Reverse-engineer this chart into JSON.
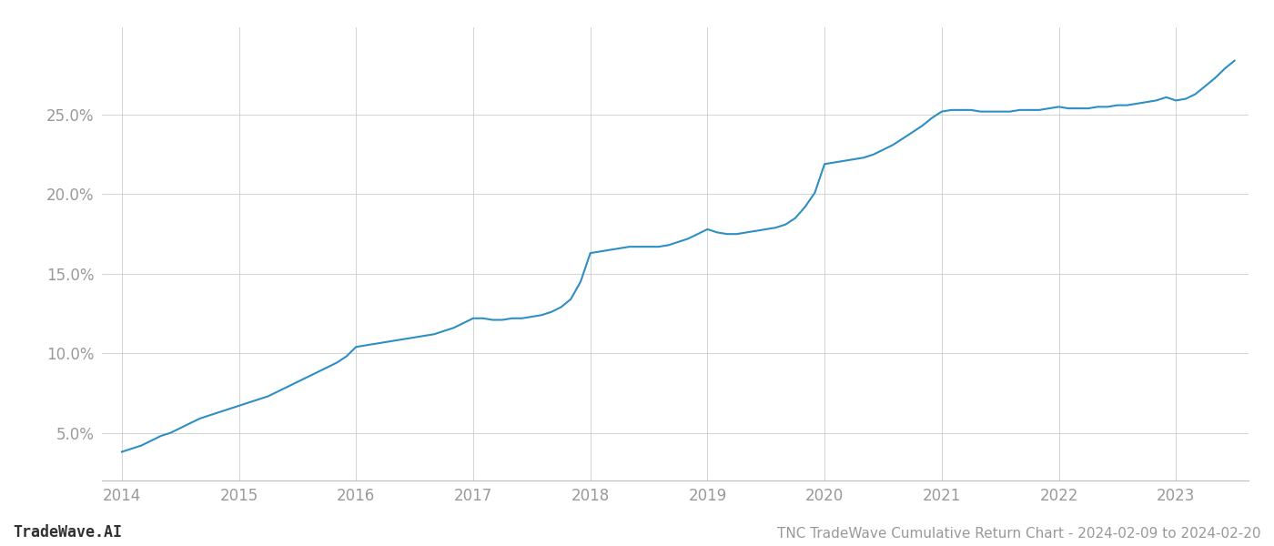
{
  "title": "TNC TradeWave Cumulative Return Chart - 2024-02-09 to 2024-02-20",
  "watermark": "TradeWave.AI",
  "line_color": "#2d8fc4",
  "background_color": "#ffffff",
  "grid_color": "#cccccc",
  "x_values": [
    2014.0,
    2014.083,
    2014.167,
    2014.25,
    2014.333,
    2014.417,
    2014.5,
    2014.583,
    2014.667,
    2014.75,
    2014.833,
    2014.917,
    2015.0,
    2015.083,
    2015.167,
    2015.25,
    2015.333,
    2015.417,
    2015.5,
    2015.583,
    2015.667,
    2015.75,
    2015.833,
    2015.917,
    2016.0,
    2016.083,
    2016.167,
    2016.25,
    2016.333,
    2016.417,
    2016.5,
    2016.583,
    2016.667,
    2016.75,
    2016.833,
    2016.917,
    2017.0,
    2017.083,
    2017.167,
    2017.25,
    2017.333,
    2017.417,
    2017.5,
    2017.583,
    2017.667,
    2017.75,
    2017.833,
    2017.917,
    2018.0,
    2018.083,
    2018.167,
    2018.25,
    2018.333,
    2018.417,
    2018.5,
    2018.583,
    2018.667,
    2018.75,
    2018.833,
    2018.917,
    2019.0,
    2019.083,
    2019.167,
    2019.25,
    2019.333,
    2019.417,
    2019.5,
    2019.583,
    2019.667,
    2019.75,
    2019.833,
    2019.917,
    2020.0,
    2020.083,
    2020.167,
    2020.25,
    2020.333,
    2020.417,
    2020.5,
    2020.583,
    2020.667,
    2020.75,
    2020.833,
    2020.917,
    2021.0,
    2021.083,
    2021.167,
    2021.25,
    2021.333,
    2021.417,
    2021.5,
    2021.583,
    2021.667,
    2021.75,
    2021.833,
    2021.917,
    2022.0,
    2022.083,
    2022.167,
    2022.25,
    2022.333,
    2022.417,
    2022.5,
    2022.583,
    2022.667,
    2022.75,
    2022.833,
    2022.917,
    2023.0,
    2023.083,
    2023.167,
    2023.25,
    2023.333,
    2023.417,
    2023.5
  ],
  "y_values": [
    3.8,
    4.0,
    4.2,
    4.5,
    4.8,
    5.0,
    5.3,
    5.6,
    5.9,
    6.1,
    6.3,
    6.5,
    6.7,
    6.9,
    7.1,
    7.3,
    7.6,
    7.9,
    8.2,
    8.5,
    8.8,
    9.1,
    9.4,
    9.8,
    10.4,
    10.5,
    10.6,
    10.7,
    10.8,
    10.9,
    11.0,
    11.1,
    11.2,
    11.4,
    11.6,
    11.9,
    12.2,
    12.2,
    12.1,
    12.1,
    12.2,
    12.2,
    12.3,
    12.4,
    12.6,
    12.9,
    13.4,
    14.5,
    16.3,
    16.4,
    16.5,
    16.6,
    16.7,
    16.7,
    16.7,
    16.7,
    16.8,
    17.0,
    17.2,
    17.5,
    17.8,
    17.6,
    17.5,
    17.5,
    17.6,
    17.7,
    17.8,
    17.9,
    18.1,
    18.5,
    19.2,
    20.1,
    21.9,
    22.0,
    22.1,
    22.2,
    22.3,
    22.5,
    22.8,
    23.1,
    23.5,
    23.9,
    24.3,
    24.8,
    25.2,
    25.3,
    25.3,
    25.3,
    25.2,
    25.2,
    25.2,
    25.2,
    25.3,
    25.3,
    25.3,
    25.4,
    25.5,
    25.4,
    25.4,
    25.4,
    25.5,
    25.5,
    25.6,
    25.6,
    25.7,
    25.8,
    25.9,
    26.1,
    25.9,
    26.0,
    26.3,
    26.8,
    27.3,
    27.9,
    28.4
  ],
  "x_ticks": [
    2014,
    2015,
    2016,
    2017,
    2018,
    2019,
    2020,
    2021,
    2022,
    2023
  ],
  "y_ticks": [
    5.0,
    10.0,
    15.0,
    20.0,
    25.0
  ],
  "xlim": [
    2013.83,
    2023.62
  ],
  "ylim": [
    2.0,
    30.5
  ],
  "line_width": 1.5,
  "tick_label_color": "#999999",
  "tick_label_fontsize": 12,
  "title_fontsize": 11,
  "watermark_fontsize": 12,
  "watermark_color": "#333333"
}
